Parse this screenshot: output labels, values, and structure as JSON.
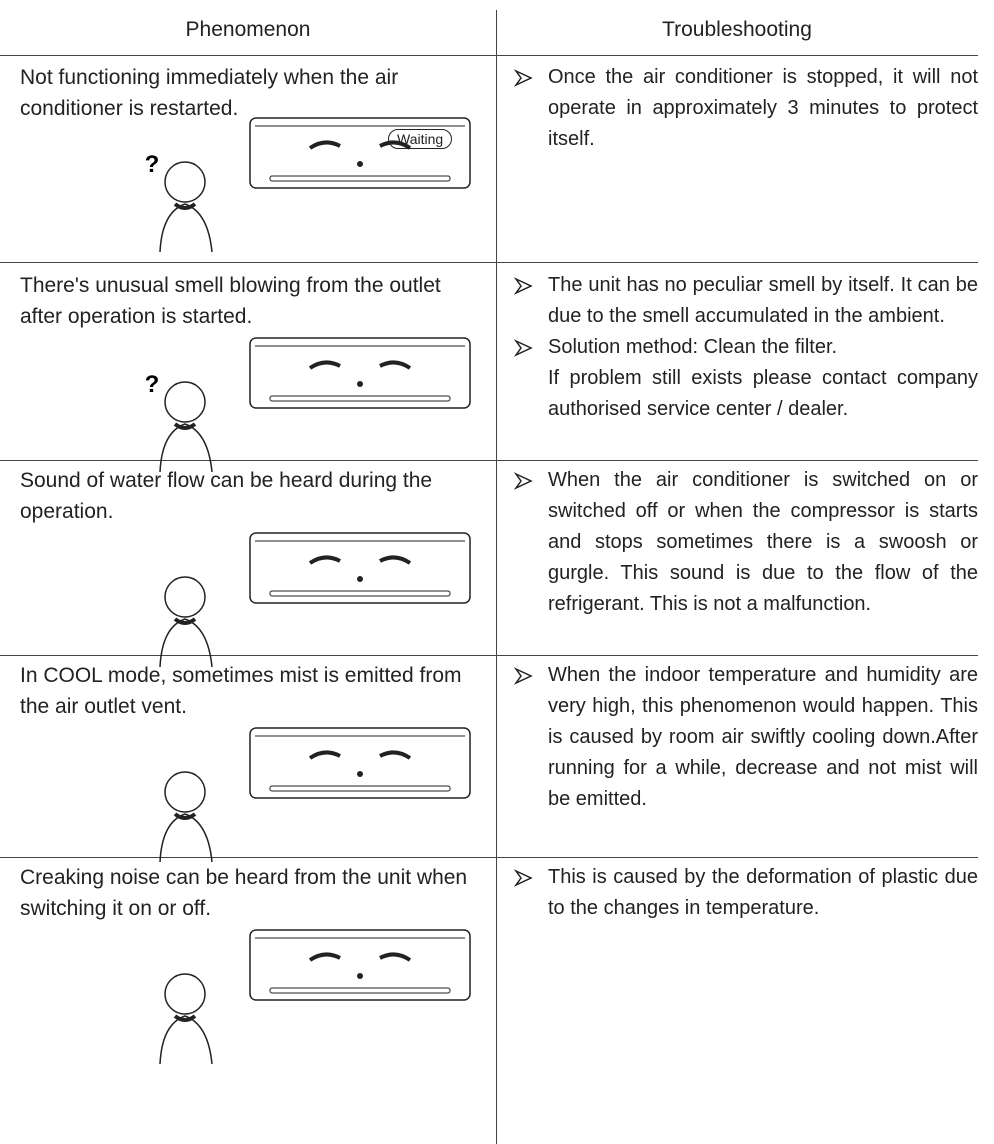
{
  "header": {
    "columns": [
      "Phenomenon",
      "Troubleshooting"
    ]
  },
  "rows": [
    {
      "phenomenon": "Not functioning immediately when the air conditioner is restarted.",
      "question": "?",
      "bubble": "Waiting",
      "bullets": [
        "Once the air conditioner is stopped, it will not operate in approximately 3 minutes to protect itself."
      ]
    },
    {
      "phenomenon": "There's unusual smell blowing from the outlet after operation is started.",
      "question": "?",
      "bullets": [
        "The unit has no peculiar smell by itself. It can be due to the smell accumulated in the ambient.",
        "Solution method: Clean the filter."
      ],
      "note": "If problem still exists please contact company authorised service center / dealer."
    },
    {
      "phenomenon": "Sound of water flow can be heard during the operation.",
      "bullets": [
        "When the air conditioner is switched on or switched off or when the compressor is starts and stops sometimes there is a swoosh or gurgle. This sound is due to the flow of the refrigerant. This is not a malfunction."
      ]
    },
    {
      "phenomenon": "In COOL mode, sometimes mist is emitted from the air outlet vent.",
      "bullets": [
        "When the indoor temperature and humidity are very high, this phenomenon would happen. This is caused by room air swiftly cooling down.After running for a while, decrease and not mist will be emitted."
      ]
    },
    {
      "phenomenon": "Creaking noise can be heard from the unit when switching it on or off.",
      "bullets": [
        "This is caused by the deformation of plastic due to the changes in temperature."
      ]
    }
  ]
}
